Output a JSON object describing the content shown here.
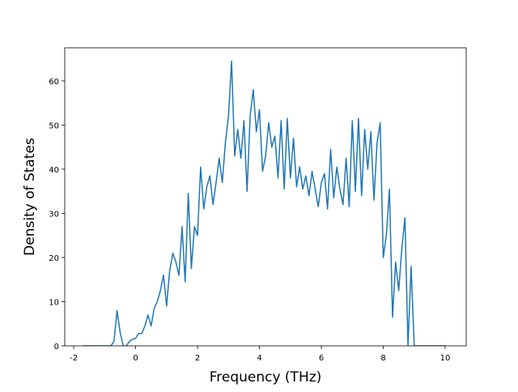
{
  "chart_data": {
    "type": "line",
    "xlabel": "Frequency (THz)",
    "ylabel": "Density of States",
    "x": [
      -1.7,
      -0.8,
      -0.7,
      -0.6,
      -0.5,
      -0.4,
      -0.3,
      -0.2,
      -0.1,
      0,
      0.1,
      0.2,
      0.3,
      0.4,
      0.5,
      0.6,
      0.7,
      0.8,
      0.9,
      1.0,
      1.1,
      1.2,
      1.3,
      1.4,
      1.5,
      1.6,
      1.7,
      1.8,
      1.9,
      2.0,
      2.1,
      2.2,
      2.3,
      2.4,
      2.5,
      2.6,
      2.7,
      2.8,
      2.9,
      3.0,
      3.1,
      3.2,
      3.3,
      3.4,
      3.5,
      3.6,
      3.7,
      3.8,
      3.9,
      4.0,
      4.1,
      4.2,
      4.3,
      4.4,
      4.5,
      4.6,
      4.7,
      4.8,
      4.9,
      5.0,
      5.1,
      5.2,
      5.3,
      5.4,
      5.5,
      5.6,
      5.7,
      5.8,
      5.9,
      6.0,
      6.1,
      6.2,
      6.3,
      6.4,
      6.5,
      6.6,
      6.7,
      6.8,
      6.9,
      7.0,
      7.1,
      7.2,
      7.3,
      7.4,
      7.5,
      7.6,
      7.7,
      7.8,
      7.9,
      8.0,
      8.1,
      8.2,
      8.3,
      8.4,
      8.5,
      8.6,
      8.7,
      8.8,
      8.9,
      9.0,
      10.0
    ],
    "series": [
      {
        "color": "#1f77b4",
        "values": [
          0,
          0,
          1,
          8,
          3,
          0,
          0,
          1,
          1.5,
          1.7,
          2.8,
          2.8,
          4.5,
          7,
          4.5,
          8.5,
          10,
          12.5,
          16,
          9,
          17,
          21,
          19,
          16,
          27,
          14.5,
          34.5,
          17.5,
          27,
          25,
          40.5,
          31,
          36,
          38.5,
          32,
          37,
          42.5,
          37,
          46,
          52,
          64.5,
          43,
          49,
          42.5,
          51,
          35,
          52,
          58,
          48.5,
          53.5,
          39.5,
          43,
          50.5,
          45,
          47.5,
          38,
          51,
          35.5,
          51.5,
          38,
          47,
          36,
          40.5,
          35.5,
          38.5,
          34,
          39.5,
          35.5,
          31.5,
          37,
          39,
          31,
          44.5,
          33.5,
          40.5,
          35.5,
          32,
          42.5,
          31.5,
          51,
          35,
          51.5,
          34,
          49,
          40,
          48.5,
          33,
          46,
          50.5,
          20,
          25,
          35.5,
          6.5,
          19,
          12.5,
          22,
          29,
          0,
          18,
          0,
          0
        ]
      }
    ],
    "xlim": [
      -2.29,
      10.68
    ],
    "ylim": [
      0,
      67.5
    ],
    "xticks": [
      -2,
      0,
      2,
      4,
      6,
      8,
      10
    ],
    "yticks": [
      0,
      10,
      20,
      30,
      40,
      50,
      60
    ]
  }
}
